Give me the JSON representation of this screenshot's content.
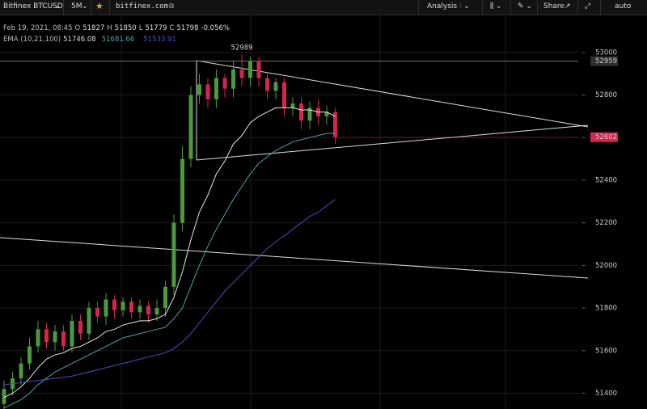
{
  "toolbar": {
    "symbol": "Bitfinex BTCUSD",
    "interval": "5M",
    "site": "bitfinex.com",
    "analysis": "Analysis",
    "share": "Share",
    "scale": "auto"
  },
  "legend": {
    "date": "Feb 19, 2021, 08:45",
    "o_label": "O",
    "open": "51827",
    "h_label": "H",
    "high": "51850",
    "l_label": "L",
    "low": "51779",
    "c_label": "C",
    "close": "51798",
    "change": "-0.056%",
    "ema_name": "EMA (10,21,100)",
    "ema1": "51746.08",
    "ema2": "51681.66",
    "ema3": "51533.91"
  },
  "chart_data": {
    "type": "candlestick",
    "ylim": [
      51326,
      53174
    ],
    "yticks": [
      51400,
      51600,
      51800,
      52000,
      52200,
      52400,
      52600,
      52800,
      53000
    ],
    "up_color": "#4b9a3c",
    "down_color": "#d6244f",
    "grid": true,
    "hline": 52959,
    "open": [
      51350,
      51420,
      51470,
      51540,
      51620,
      51700,
      51640,
      51690,
      51620,
      51740,
      51680,
      51800,
      51760,
      51840,
      51790,
      51830,
      51780,
      51810,
      51770,
      51800,
      51900,
      52200,
      52500,
      52800,
      52850,
      52780,
      52880,
      52830,
      52920,
      52880,
      52960,
      52880,
      52820,
      52860,
      52740,
      52760,
      52680,
      52740,
      52700,
      52720
    ],
    "high": [
      51460,
      51500,
      51570,
      51660,
      51740,
      51730,
      51720,
      51720,
      51770,
      51770,
      51830,
      51830,
      51870,
      51860,
      51850,
      51850,
      51840,
      51830,
      51840,
      51930,
      52240,
      52560,
      52840,
      52900,
      52880,
      52920,
      52900,
      52960,
      52989,
      52980,
      52980,
      52900,
      52880,
      52880,
      52790,
      52790,
      52770,
      52780,
      52750,
      52740
    ],
    "low": [
      51310,
      51390,
      51440,
      51510,
      51590,
      51610,
      51600,
      51600,
      51590,
      51650,
      51650,
      51730,
      51720,
      51750,
      51760,
      51750,
      51750,
      51730,
      51740,
      51760,
      51860,
      52160,
      52460,
      52760,
      52740,
      52740,
      52790,
      52790,
      52840,
      52840,
      52840,
      52780,
      52780,
      52700,
      52700,
      52640,
      52640,
      52660,
      52660,
      52570
    ],
    "close": [
      51420,
      51470,
      51540,
      51620,
      51700,
      51640,
      51690,
      51620,
      51740,
      51680,
      51800,
      51760,
      51840,
      51790,
      51830,
      51780,
      51810,
      51770,
      51800,
      51900,
      52200,
      52500,
      52800,
      52850,
      52780,
      52880,
      52830,
      52920,
      52880,
      52960,
      52880,
      52820,
      52860,
      52740,
      52760,
      52680,
      52740,
      52700,
      52720,
      52602
    ],
    "series": [
      {
        "name": "EMA 10",
        "color": "#e6e6e6",
        "values": [
          51380,
          51400,
          51430,
          51470,
          51520,
          51560,
          51580,
          51590,
          51610,
          51620,
          51640,
          51660,
          51690,
          51700,
          51720,
          51730,
          51740,
          51740,
          51750,
          51770,
          51850,
          51970,
          52120,
          52250,
          52330,
          52430,
          52490,
          52570,
          52610,
          52670,
          52700,
          52720,
          52740,
          52740,
          52740,
          52730,
          52730,
          52720,
          52720,
          52700
        ]
      },
      {
        "name": "EMA 21",
        "color": "#4ba3a8",
        "values": [
          51330,
          51350,
          51370,
          51400,
          51440,
          51470,
          51500,
          51520,
          51540,
          51560,
          51580,
          51600,
          51620,
          51640,
          51660,
          51670,
          51680,
          51690,
          51700,
          51710,
          51750,
          51800,
          51900,
          52000,
          52090,
          52170,
          52240,
          52310,
          52370,
          52430,
          52480,
          52510,
          52540,
          52560,
          52580,
          52590,
          52600,
          52610,
          52620,
          52620
        ]
      },
      {
        "name": "EMA 100",
        "color": "#4b4fbf",
        "values": [
          51440,
          51445,
          51450,
          51455,
          51460,
          51465,
          51470,
          51475,
          51480,
          51490,
          51500,
          51510,
          51520,
          51530,
          51540,
          51550,
          51560,
          51570,
          51580,
          51590,
          51610,
          51640,
          51680,
          51730,
          51780,
          51830,
          51880,
          51920,
          51960,
          52000,
          52040,
          52080,
          52110,
          52140,
          52170,
          52200,
          52230,
          52250,
          52280,
          52310
        ]
      }
    ]
  }
}
